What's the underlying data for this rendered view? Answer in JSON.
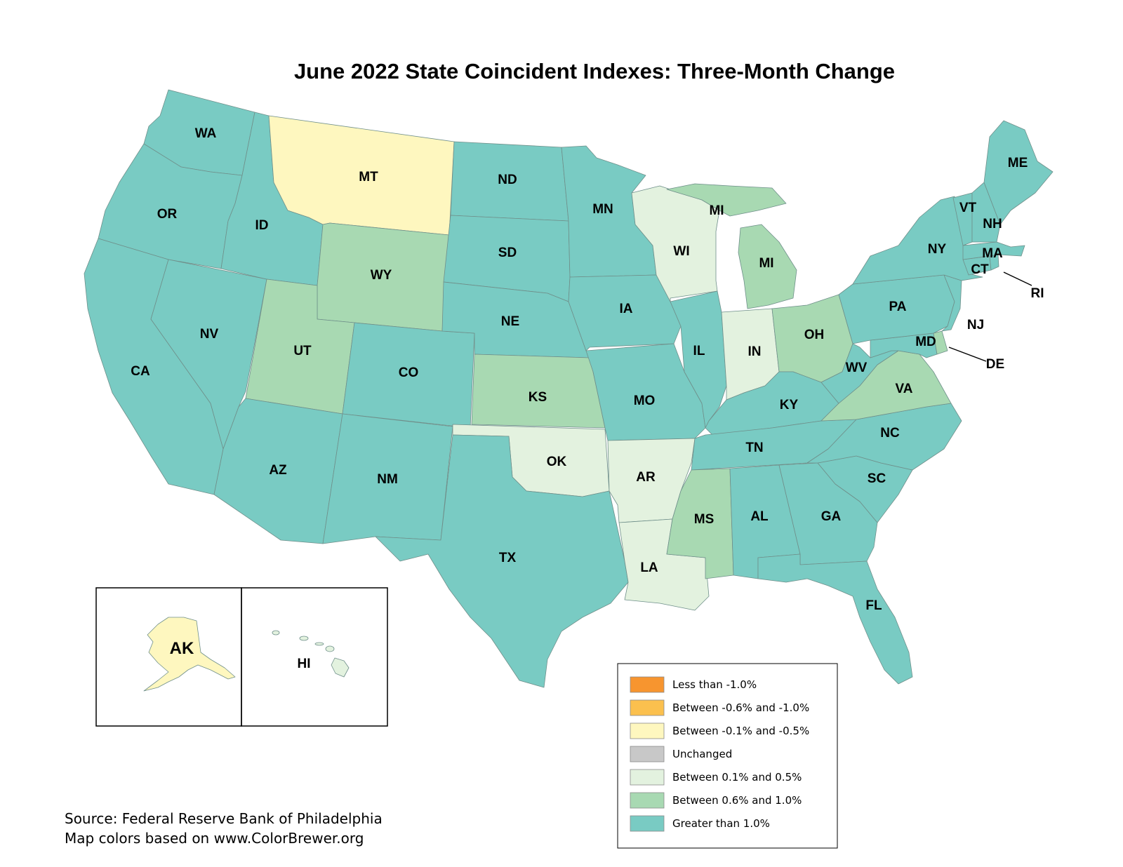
{
  "title": "June 2022 State Coincident Indexes: Three-Month Change",
  "source_lines": [
    "Source: Federal Reserve Bank of Philadelphia",
    "Map colors based on www.ColorBrewer.org"
  ],
  "categories": [
    {
      "id": "lt_neg1",
      "label": "Less than -1.0%",
      "color": "#f7952f"
    },
    {
      "id": "neg06_1",
      "label": "Between -0.6% and -1.0%",
      "color": "#fbc04e"
    },
    {
      "id": "neg01_05",
      "label": "Between -0.1% and -0.5%",
      "color": "#fef7bf"
    },
    {
      "id": "unchanged",
      "label": "Unchanged",
      "color": "#c8c8c8"
    },
    {
      "id": "pos01_05",
      "label": "Between 0.1% and 0.5%",
      "color": "#e3f2df"
    },
    {
      "id": "pos06_1",
      "label": "Between 0.6% and 1.0%",
      "color": "#a8d9b2"
    },
    {
      "id": "gt1",
      "label": "Greater than 1.0%",
      "color": "#79cbc3"
    }
  ],
  "states": [
    {
      "abbr": "WA",
      "category": "gt1"
    },
    {
      "abbr": "OR",
      "category": "gt1"
    },
    {
      "abbr": "CA",
      "category": "gt1"
    },
    {
      "abbr": "NV",
      "category": "gt1"
    },
    {
      "abbr": "ID",
      "category": "gt1"
    },
    {
      "abbr": "MT",
      "category": "neg01_05"
    },
    {
      "abbr": "WY",
      "category": "pos06_1"
    },
    {
      "abbr": "UT",
      "category": "pos06_1"
    },
    {
      "abbr": "CO",
      "category": "gt1"
    },
    {
      "abbr": "AZ",
      "category": "gt1"
    },
    {
      "abbr": "NM",
      "category": "gt1"
    },
    {
      "abbr": "ND",
      "category": "gt1"
    },
    {
      "abbr": "SD",
      "category": "gt1"
    },
    {
      "abbr": "NE",
      "category": "gt1"
    },
    {
      "abbr": "KS",
      "category": "pos06_1"
    },
    {
      "abbr": "OK",
      "category": "pos01_05"
    },
    {
      "abbr": "TX",
      "category": "gt1"
    },
    {
      "abbr": "MN",
      "category": "gt1"
    },
    {
      "abbr": "IA",
      "category": "gt1"
    },
    {
      "abbr": "MO",
      "category": "gt1"
    },
    {
      "abbr": "AR",
      "category": "pos01_05"
    },
    {
      "abbr": "LA",
      "category": "pos01_05"
    },
    {
      "abbr": "WI",
      "category": "pos01_05"
    },
    {
      "abbr": "IL",
      "category": "gt1"
    },
    {
      "abbr": "MI",
      "category": "pos06_1"
    },
    {
      "abbr": "IN",
      "category": "pos01_05"
    },
    {
      "abbr": "OH",
      "category": "pos06_1"
    },
    {
      "abbr": "KY",
      "category": "gt1"
    },
    {
      "abbr": "TN",
      "category": "gt1"
    },
    {
      "abbr": "MS",
      "category": "pos06_1"
    },
    {
      "abbr": "AL",
      "category": "gt1"
    },
    {
      "abbr": "GA",
      "category": "gt1"
    },
    {
      "abbr": "FL",
      "category": "gt1"
    },
    {
      "abbr": "SC",
      "category": "gt1"
    },
    {
      "abbr": "NC",
      "category": "gt1"
    },
    {
      "abbr": "VA",
      "category": "pos06_1"
    },
    {
      "abbr": "WV",
      "category": "gt1"
    },
    {
      "abbr": "MD",
      "category": "gt1"
    },
    {
      "abbr": "DE",
      "category": "pos06_1"
    },
    {
      "abbr": "PA",
      "category": "gt1"
    },
    {
      "abbr": "NJ",
      "category": "gt1"
    },
    {
      "abbr": "NY",
      "category": "gt1"
    },
    {
      "abbr": "CT",
      "category": "gt1"
    },
    {
      "abbr": "RI",
      "category": "gt1"
    },
    {
      "abbr": "MA",
      "category": "gt1"
    },
    {
      "abbr": "VT",
      "category": "gt1"
    },
    {
      "abbr": "NH",
      "category": "gt1"
    },
    {
      "abbr": "ME",
      "category": "gt1"
    },
    {
      "abbr": "AK",
      "category": "neg01_05"
    },
    {
      "abbr": "HI",
      "category": "pos01_05"
    }
  ]
}
